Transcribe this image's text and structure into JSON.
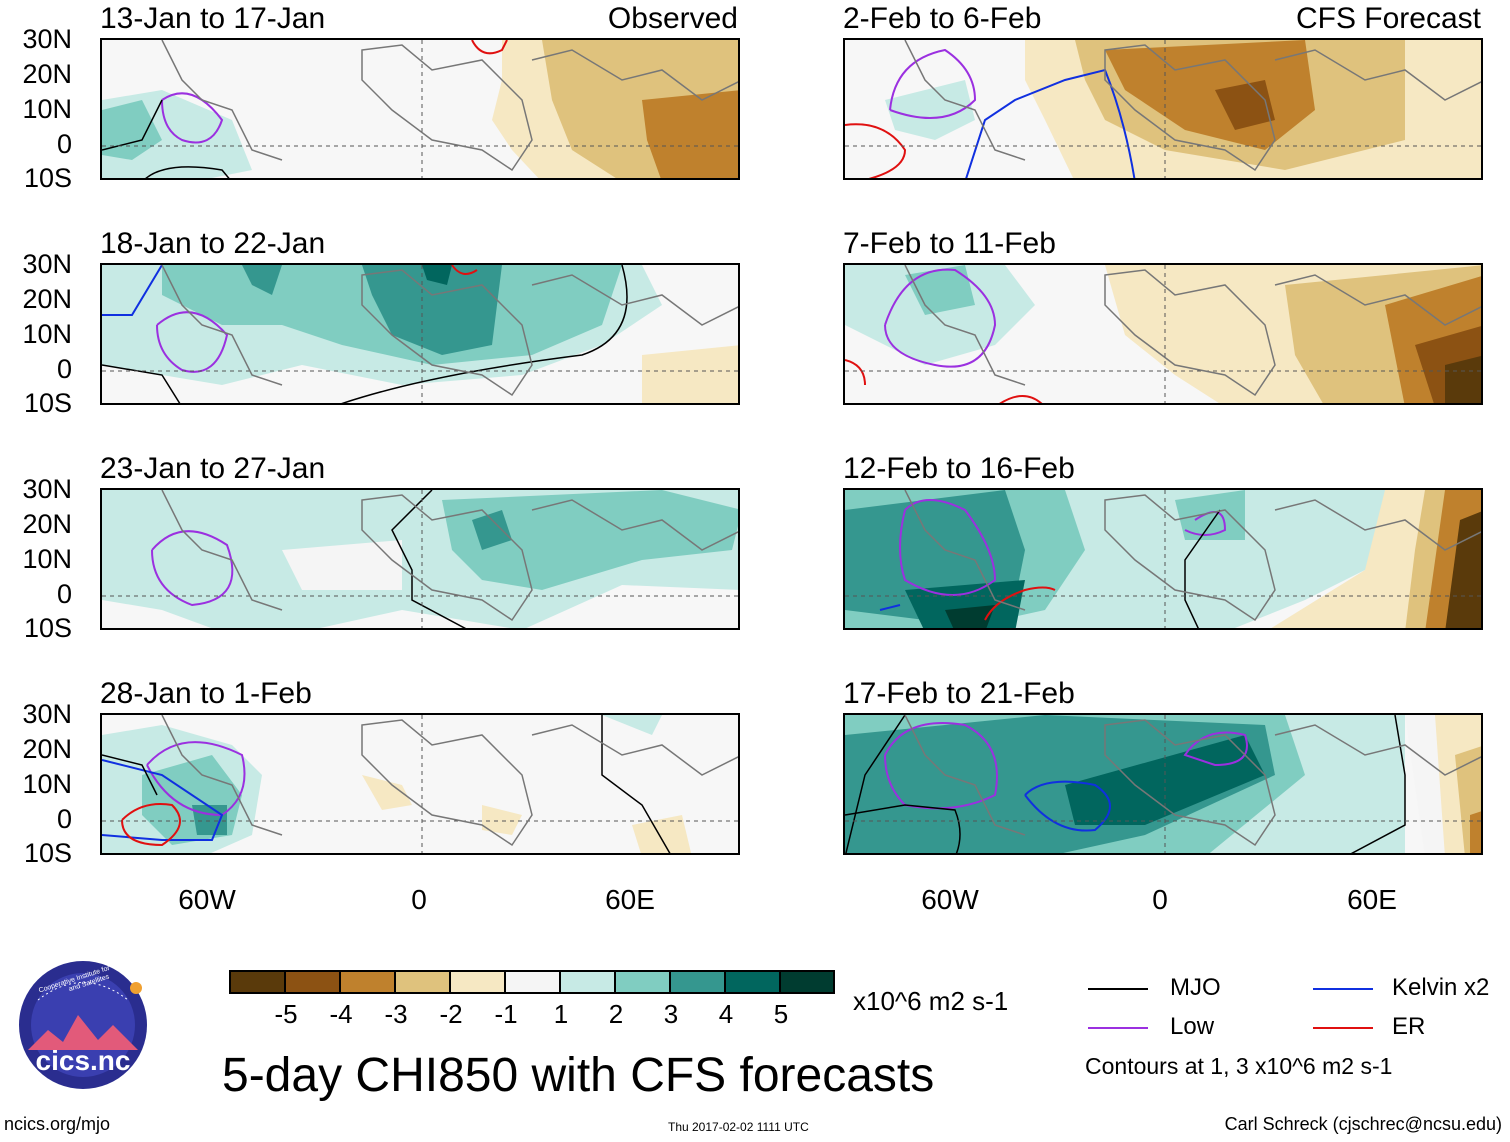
{
  "panels": {
    "p1": {
      "date": "13-Jan to 17-Jan",
      "tag": "Observed"
    },
    "p2": {
      "date": "2-Feb to 6-Feb",
      "tag": "CFS Forecast"
    },
    "p3": {
      "date": "18-Jan to 22-Jan"
    },
    "p4": {
      "date": "7-Feb to 11-Feb"
    },
    "p5": {
      "date": "23-Jan to 27-Jan"
    },
    "p6": {
      "date": "12-Feb to 16-Feb"
    },
    "p7": {
      "date": "28-Jan to 1-Feb"
    },
    "p8": {
      "date": "17-Feb to 21-Feb"
    }
  },
  "axes": {
    "lat": [
      "30N",
      "20N",
      "10N",
      "0",
      "10S"
    ],
    "lon": [
      "60W",
      "0",
      "60E"
    ]
  },
  "colorbar": {
    "ticks": [
      "-5",
      "-4",
      "-3",
      "-2",
      "-1",
      "1",
      "2",
      "3",
      "4",
      "5"
    ],
    "units": "x10^6 m2 s-1",
    "colors": [
      "#5a3a0b",
      "#8c5213",
      "#bf812d",
      "#dfc27d",
      "#f6e8c3",
      "#f5f5f5",
      "#c7eae5",
      "#80cdc1",
      "#35978f",
      "#01665e",
      "#003c30"
    ]
  },
  "legend": {
    "mjo": "MJO",
    "kelvin": "Kelvin x2",
    "low": "Low",
    "er": "ER",
    "contours_note": "Contours at 1, 3 x10^6 m2 s-1",
    "colors": {
      "mjo": "#000000",
      "kelvin": "#1030e0",
      "low": "#9b30e0",
      "er": "#e01010"
    }
  },
  "title": "5-day CHI850 with CFS forecasts",
  "logo": {
    "text": "cics.nc",
    "ring": "Cooperative Institute for Climate and Satellites"
  },
  "footer": {
    "left": "ncics.org/mjo",
    "timestamp": "Thu 2017-02-02 1111 UTC",
    "credit": "Carl Schreck (cjschrec@ncsu.edu)"
  }
}
